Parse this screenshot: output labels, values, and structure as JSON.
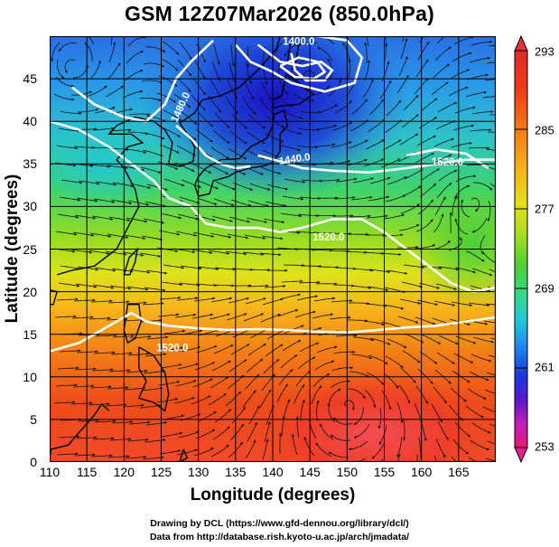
{
  "title": "GSM 12Z07Mar2026 (850.0hPa)",
  "x_axis": {
    "label": "Longitude (degrees)",
    "ticks": [
      "110",
      "115",
      "120",
      "125",
      "130",
      "135",
      "140",
      "145",
      "150",
      "155",
      "160",
      "165"
    ],
    "range": [
      110,
      170
    ]
  },
  "y_axis": {
    "label": "Latitude  (degrees)",
    "ticks": [
      "0",
      "5",
      "10",
      "15",
      "20",
      "25",
      "30",
      "35",
      "40",
      "45"
    ],
    "range": [
      0,
      50
    ]
  },
  "colorbar": {
    "labels": [
      "293",
      "285",
      "277",
      "269",
      "261",
      "253"
    ],
    "colors": [
      "#e8196d",
      "#c21fbd",
      "#5a19c9",
      "#1a36e0",
      "#1f8df0",
      "#22c9d9",
      "#33d98e",
      "#4fcf34",
      "#a9de1f",
      "#e6de1a",
      "#f7b21a",
      "#f57a14",
      "#ef3d1a",
      "#e02a2a"
    ]
  },
  "contours": {
    "labels": [
      "1400.0",
      "1480.0",
      "1440.0",
      "1520.0",
      "1520.0",
      "1520.0"
    ]
  },
  "footer": {
    "line1": "Drawing by DCL (https://www.gfd-dennou.org/library/dcl/)",
    "line2": "Data from http://database.rish.kyoto-u.ac.jp/arch/jmadata/"
  }
}
